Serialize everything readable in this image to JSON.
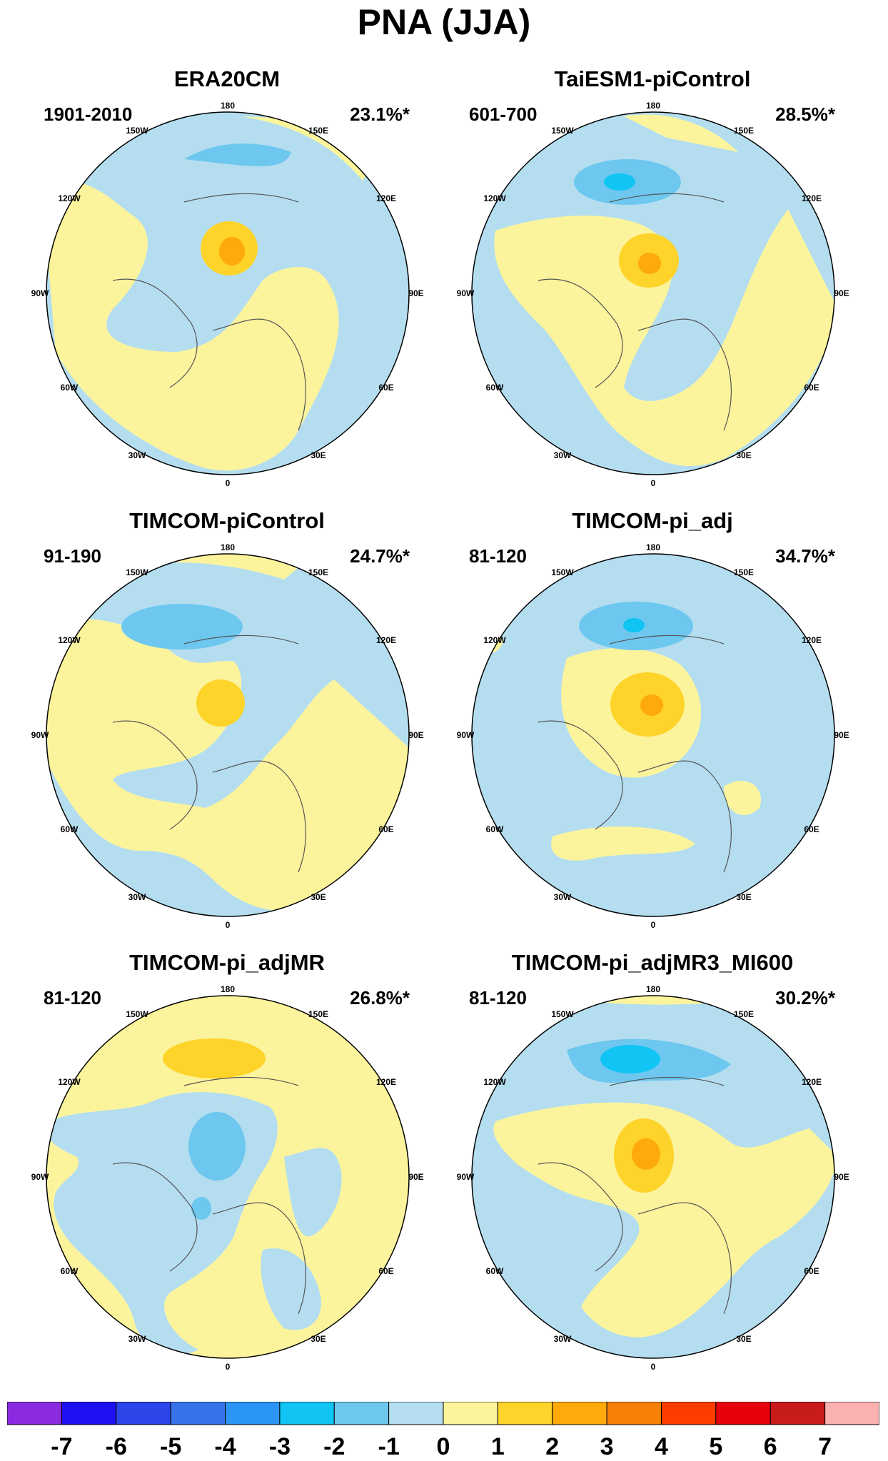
{
  "figure": {
    "title": "PNA (JJA)"
  },
  "panels": [
    {
      "title": "ERA20CM",
      "period": "1901-2010",
      "variance": "23.1%*"
    },
    {
      "title": "TaiESM1-piControl",
      "period": "601-700",
      "variance": "28.5%*"
    },
    {
      "title": "TIMCOM-piControl",
      "period": "91-190",
      "variance": "24.7%*"
    },
    {
      "title": "TIMCOM-pi_adj",
      "period": "81-120",
      "variance": "34.7%*"
    },
    {
      "title": "TIMCOM-pi_adjMR",
      "period": "81-120",
      "variance": "26.8%*"
    },
    {
      "title": "TIMCOM-pi_adjMR3_MI600",
      "period": "81-120",
      "variance": "30.2%*"
    }
  ],
  "map": {
    "longitude_labels": [
      "180",
      "150E",
      "120E",
      "90E",
      "60E",
      "30E",
      "0",
      "30W",
      "60W",
      "90W",
      "120W",
      "150W"
    ]
  },
  "colorbar": {
    "labels": [
      "-7",
      "-6",
      "-5",
      "-4",
      "-3",
      "-2",
      "-1",
      "0",
      "1",
      "2",
      "3",
      "4",
      "5",
      "6",
      "7"
    ],
    "colors": [
      "#8a2be2",
      "#1e10f0",
      "#2b45e8",
      "#3672ea",
      "#2b95f5",
      "#10c4f3",
      "#6dc7ef",
      "#b4def0",
      "#fcf49c",
      "#fed32a",
      "#fdaa0a",
      "#f98008",
      "#ff3c00",
      "#e8000c",
      "#c81c1c",
      "#fbb1b1"
    ]
  }
}
